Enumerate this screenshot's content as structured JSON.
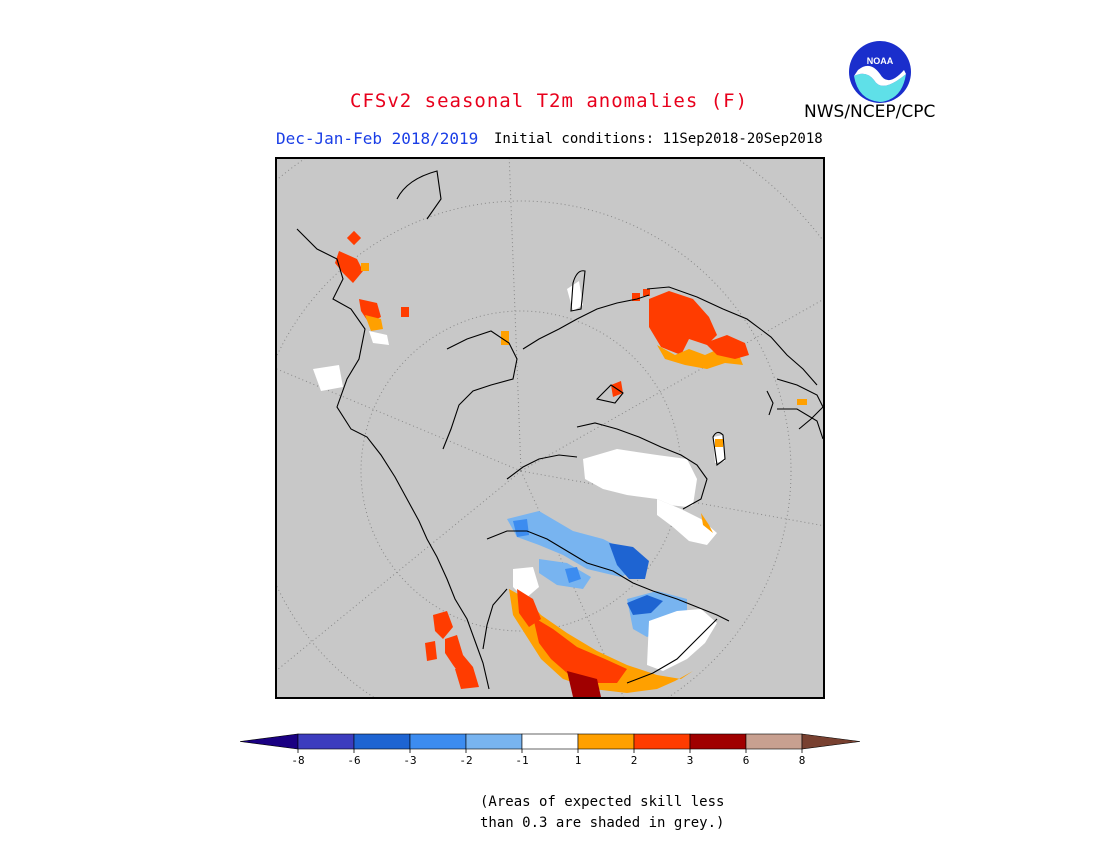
{
  "header": {
    "title": "CFSv2 seasonal T2m anomalies (F)",
    "season": "Dec-Jan-Feb 2018/2019",
    "initial_conditions": "Initial conditions: 11Sep2018-20Sep2018",
    "agency": "NWS/NCEP/CPC",
    "logo_text": "NOAA"
  },
  "legend": {
    "labels": [
      "-8",
      "-6",
      "-3",
      "-2",
      "-1",
      "1",
      "2",
      "3",
      "6",
      "8"
    ],
    "colors": [
      "#1a0082",
      "#3c3cbe",
      "#1e64d2",
      "#3c8cf0",
      "#78b4f0",
      "#ffffff",
      "#ffa000",
      "#ff3c00",
      "#a00000",
      "#c8a090",
      "#784030"
    ]
  },
  "note": "(Areas of expected skill less\nthan 0.3 are shaded in grey.)",
  "colors": {
    "background_grey": "#c8c8c8",
    "title_red": "#e8001c",
    "subtitle_blue": "#1a3ee6"
  }
}
